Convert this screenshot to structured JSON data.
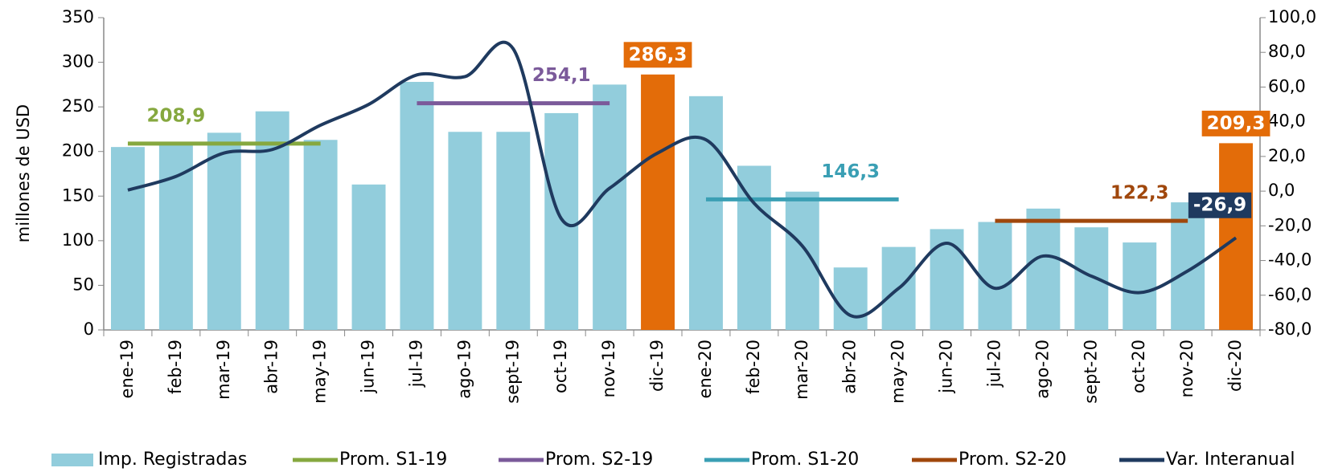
{
  "chart_data": {
    "type": "bar-line",
    "y_label": "millones de USD",
    "categories": [
      "ene-19",
      "feb-19",
      "mar-19",
      "abr-19",
      "may-19",
      "jun-19",
      "jul-19",
      "ago-19",
      "sept-19",
      "oct-19",
      "nov-19",
      "dic-19",
      "ene-20",
      "feb-20",
      "mar-20",
      "abr-20",
      "may-20",
      "jun-20",
      "jul-20",
      "ago-20",
      "sept-20",
      "oct-20",
      "nov-20",
      "dic-20"
    ],
    "ylim": [
      0,
      350
    ],
    "yticks": [
      0,
      50,
      100,
      150,
      200,
      250,
      300,
      350
    ],
    "y2lim": [
      -80,
      100
    ],
    "y2ticks": [
      {
        "value": -80,
        "label": "-80,0"
      },
      {
        "value": -60,
        "label": "-60,0"
      },
      {
        "value": -40,
        "label": "-40,0"
      },
      {
        "value": -20,
        "label": "-20,0"
      },
      {
        "value": 0,
        "label": "0,0"
      },
      {
        "value": 20,
        "label": "20,0"
      },
      {
        "value": 40,
        "label": "40,0"
      },
      {
        "value": 60,
        "label": "60,0"
      },
      {
        "value": 80,
        "label": "80,0"
      },
      {
        "value": 100,
        "label": "100,0"
      }
    ],
    "series": [
      {
        "name": "Imp. Registradas",
        "type": "bar",
        "color": "#92cddc",
        "colors": [
          "#92cddc",
          "#92cddc",
          "#92cddc",
          "#92cddc",
          "#92cddc",
          "#92cddc",
          "#92cddc",
          "#92cddc",
          "#92cddc",
          "#92cddc",
          "#92cddc",
          "#e36c09",
          "#92cddc",
          "#92cddc",
          "#92cddc",
          "#92cddc",
          "#92cddc",
          "#92cddc",
          "#92cddc",
          "#92cddc",
          "#92cddc",
          "#92cddc",
          "#92cddc",
          "#e36c09"
        ],
        "values": [
          205,
          210,
          221,
          245,
          213,
          163,
          278,
          222,
          222,
          243,
          275,
          286.3,
          262,
          184,
          155,
          70,
          93,
          113,
          121,
          136,
          115,
          98,
          143,
          209.3
        ],
        "value_labels": [
          null,
          null,
          null,
          null,
          null,
          null,
          null,
          null,
          null,
          null,
          null,
          "286,3",
          null,
          null,
          null,
          null,
          null,
          null,
          null,
          null,
          null,
          null,
          null,
          "209,3"
        ]
      },
      {
        "name": "Prom. S1-19",
        "type": "line",
        "color": "#86a83f",
        "values": [
          208.9,
          208.9,
          208.9,
          208.9,
          208.9,
          null,
          null,
          null,
          null,
          null,
          null,
          null,
          null,
          null,
          null,
          null,
          null,
          null,
          null,
          null,
          null,
          null,
          null,
          null
        ],
        "value_labels": [
          null,
          "208,9",
          null,
          null,
          null,
          null,
          null,
          null,
          null,
          null,
          null,
          null,
          null,
          null,
          null,
          null,
          null,
          null,
          null,
          null,
          null,
          null,
          null,
          null
        ]
      },
      {
        "name": "Prom. S2-19",
        "type": "line",
        "color": "#7b5a9a",
        "values": [
          null,
          null,
          null,
          null,
          null,
          null,
          254.1,
          254.1,
          254.1,
          254.1,
          254.1,
          null,
          null,
          null,
          null,
          null,
          null,
          null,
          null,
          null,
          null,
          null,
          null,
          null
        ],
        "value_labels": [
          null,
          null,
          null,
          null,
          null,
          null,
          null,
          null,
          null,
          "254,1",
          null,
          null,
          null,
          null,
          null,
          null,
          null,
          null,
          null,
          null,
          null,
          null,
          null,
          null
        ]
      },
      {
        "name": "Prom. S1-20",
        "type": "line",
        "color": "#3a9fb4",
        "values": [
          null,
          null,
          null,
          null,
          null,
          null,
          null,
          null,
          null,
          null,
          null,
          null,
          146.3,
          146.3,
          146.3,
          146.3,
          146.3,
          null,
          null,
          null,
          null,
          null,
          null,
          null
        ],
        "value_labels": [
          null,
          null,
          null,
          null,
          null,
          null,
          null,
          null,
          null,
          null,
          null,
          null,
          null,
          null,
          null,
          "146,3",
          null,
          null,
          null,
          null,
          null,
          null,
          null,
          null
        ]
      },
      {
        "name": "Prom. S2-20",
        "type": "line",
        "color": "#a0470c",
        "values": [
          null,
          null,
          null,
          null,
          null,
          null,
          null,
          null,
          null,
          null,
          null,
          null,
          null,
          null,
          null,
          null,
          null,
          null,
          122.3,
          122.3,
          122.3,
          122.3,
          122.3,
          null
        ],
        "value_labels": [
          null,
          null,
          null,
          null,
          null,
          null,
          null,
          null,
          null,
          null,
          null,
          null,
          null,
          null,
          null,
          null,
          null,
          null,
          null,
          null,
          null,
          "122,3",
          null,
          null
        ]
      },
      {
        "name": "Var. Interanual",
        "type": "curve",
        "axis": "y2",
        "color": "#1f3a5f",
        "values": [
          0.6,
          8.5,
          22,
          24,
          38,
          50,
          67,
          66,
          82,
          -16,
          1.7,
          22,
          29.6,
          -7,
          -31.6,
          -71.7,
          -56,
          -30,
          -56,
          -37.4,
          -49,
          -58.5,
          -46,
          -26.9
        ],
        "value_labels": [
          null,
          null,
          null,
          null,
          null,
          null,
          null,
          null,
          null,
          null,
          null,
          null,
          null,
          null,
          null,
          null,
          null,
          null,
          null,
          null,
          null,
          null,
          null,
          "-26,9"
        ]
      }
    ]
  }
}
